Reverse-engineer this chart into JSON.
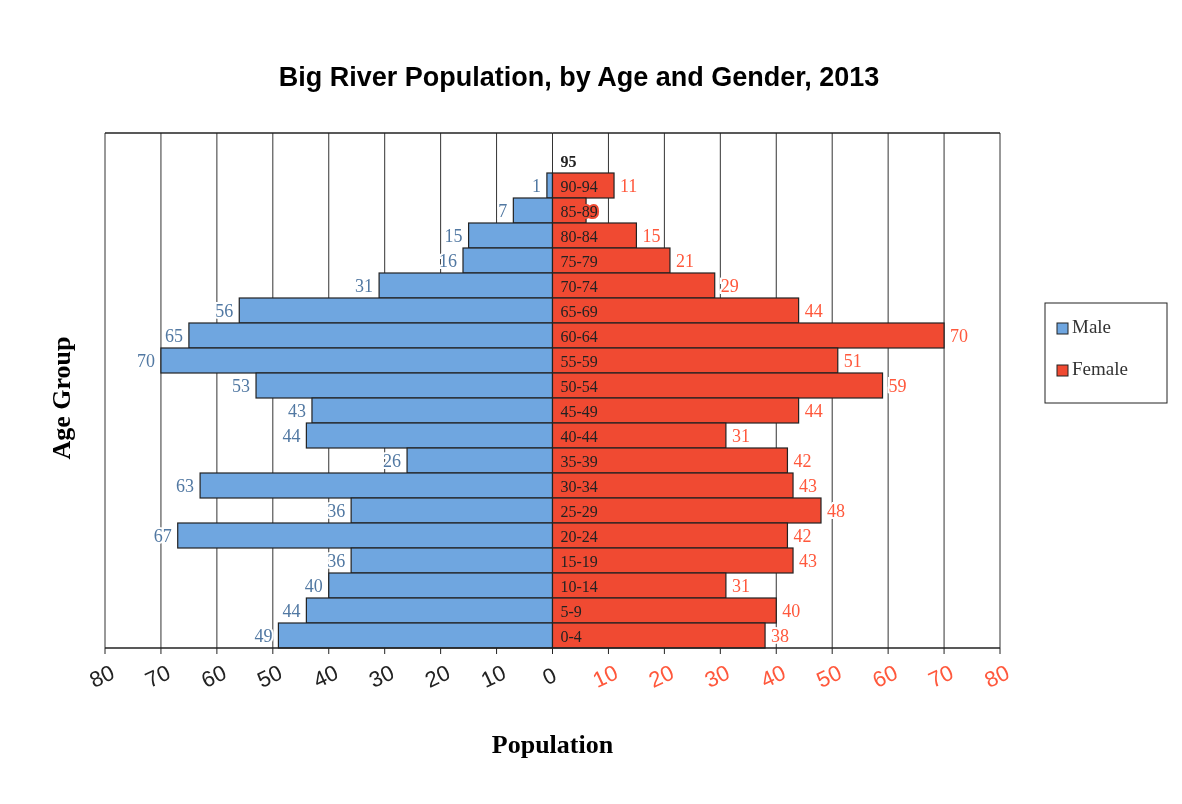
{
  "chart_data": [
    {
      "type": "bar",
      "orientation": "horizontal",
      "title": "Big River Population, by Age and Gender, 2013",
      "xlabel": "Population",
      "ylabel": "Age Group",
      "tick_labels": "x",
      "categories": [
        null,
        null,
        null,
        null,
        null,
        null,
        null,
        null,
        null,
        null,
        null,
        null,
        null,
        null,
        null,
        null,
        null,
        null,
        null,
        null
      ],
      "series": [
        {
          "name": "Male",
          "color": "#6fa6e0",
          "values": [
            null,
            1,
            7,
            15,
            16,
            31,
            56,
            65,
            70,
            53,
            43,
            44,
            26,
            63,
            36,
            67,
            36,
            40,
            44,
            49
          ]
        }
      ],
      "data_labels": true,
      "xlim": [
        80,
        0
      ],
      "xticks": [
        80,
        70,
        60,
        50,
        40,
        30,
        20,
        10,
        0
      ],
      "grid": "x",
      "legend": "right"
    },
    {
      "type": "bar",
      "orientation": "horizontal",
      "categories": [
        "95",
        "90-94",
        "85-89",
        "80-84",
        "75-79",
        "70-74",
        "65-69",
        "60-64",
        "55-59",
        "50-54",
        "45-49",
        "40-44",
        "35-39",
        "30-34",
        "25-29",
        "20-24",
        "15-19",
        "10-14",
        "5-9",
        "0-4"
      ],
      "series": [
        {
          "name": "Female",
          "color": "#f04a32",
          "values": [
            null,
            11,
            6,
            15,
            21,
            29,
            44,
            70,
            51,
            59,
            44,
            31,
            42,
            43,
            48,
            42,
            43,
            31,
            40,
            38
          ],
          "value_labels": [
            null,
            "11",
            null,
            "15",
            "21",
            "29",
            "44",
            "70",
            "51",
            "59",
            "44",
            "31",
            "42",
            "43",
            "48",
            "42",
            "43",
            "31",
            "40",
            "38"
          ]
        }
      ],
      "xlim": [
        0,
        80
      ],
      "xticks": [
        10,
        20,
        30,
        40,
        50,
        60,
        70,
        80
      ],
      "grid": "x",
      "legend": "right"
    }
  ]
}
